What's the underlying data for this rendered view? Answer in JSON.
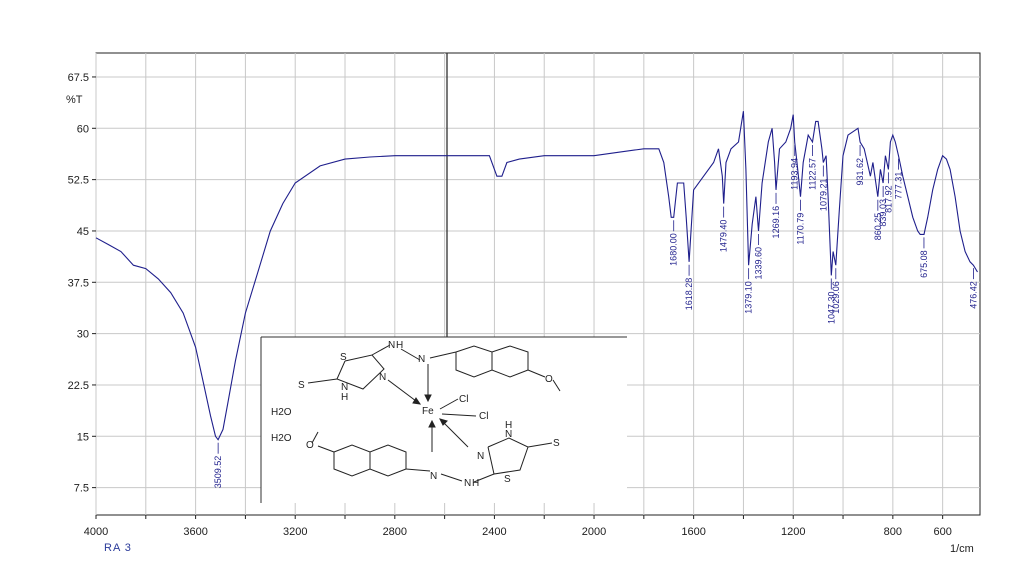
{
  "chart_data": {
    "type": "line",
    "title": "",
    "ylabel": "%T",
    "xlabel": "1/cm",
    "sample_label": "RA 3",
    "x_reversed": true,
    "xlim": [
      4000,
      450
    ],
    "ylim": [
      3.5,
      71
    ],
    "grid": true,
    "colors": {
      "trace": "#1f1f8c",
      "grid": "#c8c8c8",
      "axis": "#202020"
    },
    "x_ticks": [
      4000,
      3600,
      3200,
      2800,
      2400,
      2000,
      1600,
      1200,
      800,
      600
    ],
    "x_tick_labels": [
      "4000",
      "3600",
      "3200",
      "2800",
      "2400",
      "2000",
      "1600",
      "1200",
      "800",
      "600"
    ],
    "x_ticks_all": [
      4000,
      3800,
      3600,
      3400,
      3200,
      3000,
      2800,
      2600,
      2400,
      2200,
      2000,
      1800,
      1600,
      1400,
      1200,
      1000,
      800,
      600
    ],
    "x_tick_labels_all": [
      "4000",
      "3800",
      "3600",
      "3400",
      "3200",
      "3000",
      "2800",
      "2600",
      "2400",
      "2200",
      "2000",
      "1800",
      "1600",
      "1400",
      "1200",
      "1000",
      "800",
      "600"
    ],
    "y_ticks": [
      7.5,
      15,
      22.5,
      30,
      37.5,
      45,
      52.5,
      60,
      67.5
    ],
    "y_tick_labels": [
      "7.5",
      "15",
      "22.5",
      "30",
      "37.5",
      "45",
      "52.5",
      "60",
      "67.5"
    ],
    "series": [
      {
        "values": [
          [
            4000,
            44
          ],
          [
            3950,
            43
          ],
          [
            3900,
            42
          ],
          [
            3850,
            40
          ],
          [
            3800,
            39.5
          ],
          [
            3750,
            38
          ],
          [
            3700,
            36
          ],
          [
            3650,
            33
          ],
          [
            3600,
            28
          ],
          [
            3570,
            23
          ],
          [
            3540,
            18
          ],
          [
            3520,
            15
          ],
          [
            3509.52,
            14.5
          ],
          [
            3490,
            16
          ],
          [
            3470,
            20
          ],
          [
            3440,
            26
          ],
          [
            3400,
            33
          ],
          [
            3350,
            39
          ],
          [
            3300,
            45
          ],
          [
            3250,
            49
          ],
          [
            3200,
            52
          ],
          [
            3100,
            54.5
          ],
          [
            3000,
            55.5
          ],
          [
            2900,
            55.8
          ],
          [
            2800,
            56
          ],
          [
            2700,
            56
          ],
          [
            2600,
            56
          ],
          [
            2500,
            56
          ],
          [
            2420,
            56
          ],
          [
            2390,
            53
          ],
          [
            2370,
            53
          ],
          [
            2350,
            55
          ],
          [
            2300,
            55.5
          ],
          [
            2200,
            56
          ],
          [
            2100,
            56
          ],
          [
            2000,
            56
          ],
          [
            1900,
            56.5
          ],
          [
            1800,
            57
          ],
          [
            1740,
            57
          ],
          [
            1720,
            55
          ],
          [
            1700,
            50
          ],
          [
            1690,
            47
          ],
          [
            1680,
            47
          ],
          [
            1665,
            52
          ],
          [
            1640,
            52
          ],
          [
            1630,
            47
          ],
          [
            1618.28,
            40.5
          ],
          [
            1600,
            51
          ],
          [
            1560,
            53
          ],
          [
            1520,
            55
          ],
          [
            1500,
            57
          ],
          [
            1485,
            53
          ],
          [
            1479.4,
            49
          ],
          [
            1470,
            55
          ],
          [
            1450,
            57
          ],
          [
            1420,
            58
          ],
          [
            1400,
            62.5
          ],
          [
            1390,
            54
          ],
          [
            1379.1,
            40
          ],
          [
            1365,
            46
          ],
          [
            1350,
            50
          ],
          [
            1339.6,
            45
          ],
          [
            1325,
            52
          ],
          [
            1300,
            58
          ],
          [
            1285,
            60
          ],
          [
            1275,
            55
          ],
          [
            1269.16,
            51
          ],
          [
            1255,
            57
          ],
          [
            1230,
            58
          ],
          [
            1210,
            60
          ],
          [
            1200,
            62
          ],
          [
            1193.94,
            58
          ],
          [
            1185,
            55
          ],
          [
            1170.79,
            50
          ],
          [
            1160,
            55
          ],
          [
            1140,
            59
          ],
          [
            1122.57,
            58
          ],
          [
            1110,
            61
          ],
          [
            1100,
            61
          ],
          [
            1085,
            57
          ],
          [
            1079.21,
            55
          ],
          [
            1068,
            56
          ],
          [
            1060,
            50
          ],
          [
            1047.3,
            38.5
          ],
          [
            1040,
            42
          ],
          [
            1029.06,
            40
          ],
          [
            1015,
            48
          ],
          [
            1000,
            56
          ],
          [
            980,
            59
          ],
          [
            960,
            59.5
          ],
          [
            940,
            60
          ],
          [
            931.62,
            58
          ],
          [
            915,
            57
          ],
          [
            890,
            53
          ],
          [
            880,
            55
          ],
          [
            860.25,
            50
          ],
          [
            850,
            54
          ],
          [
            839.03,
            52
          ],
          [
            830,
            56
          ],
          [
            817.92,
            54
          ],
          [
            810,
            58
          ],
          [
            800,
            59
          ],
          [
            790,
            58
          ],
          [
            777.31,
            56
          ],
          [
            760,
            53
          ],
          [
            740,
            50
          ],
          [
            720,
            47
          ],
          [
            700,
            45
          ],
          [
            690,
            44.5
          ],
          [
            675.08,
            44.5
          ],
          [
            660,
            47
          ],
          [
            640,
            51
          ],
          [
            620,
            54
          ],
          [
            600,
            56
          ],
          [
            585,
            55.5
          ],
          [
            570,
            54
          ],
          [
            550,
            50
          ],
          [
            530,
            45
          ],
          [
            510,
            42
          ],
          [
            490,
            40.5
          ],
          [
            476.42,
            40
          ],
          [
            460,
            39
          ]
        ]
      }
    ],
    "annotations": [
      {
        "label": "3509.52",
        "x": 3509.52,
        "y": 14.5
      },
      {
        "label": "1680.00",
        "x": 1680,
        "y": 47
      },
      {
        "label": "1618.28",
        "x": 1618.28,
        "y": 40.5
      },
      {
        "label": "1479.40",
        "x": 1479.4,
        "y": 49
      },
      {
        "label": "1379.10",
        "x": 1379.1,
        "y": 40
      },
      {
        "label": "1339.60",
        "x": 1339.6,
        "y": 45
      },
      {
        "label": "1269.16",
        "x": 1269.16,
        "y": 51
      },
      {
        "label": "1193.94",
        "x": 1193.94,
        "y": 58
      },
      {
        "label": "1170.79",
        "x": 1170.79,
        "y": 50
      },
      {
        "label": "1122.57",
        "x": 1122.57,
        "y": 58
      },
      {
        "label": "1079.21",
        "x": 1079.21,
        "y": 55
      },
      {
        "label": "1047.30",
        "x": 1047.3,
        "y": 38.5
      },
      {
        "label": "1029.06",
        "x": 1029.06,
        "y": 40
      },
      {
        "label": "931.62",
        "x": 931.62,
        "y": 58
      },
      {
        "label": "860.25",
        "x": 860.25,
        "y": 50
      },
      {
        "label": "839.03",
        "x": 839.03,
        "y": 52
      },
      {
        "label": "817.92",
        "x": 817.92,
        "y": 54
      },
      {
        "label": "777.31",
        "x": 777.31,
        "y": 56
      },
      {
        "label": "675.08",
        "x": 675.08,
        "y": 44.5
      },
      {
        "label": "476.42",
        "x": 476.42,
        "y": 40
      }
    ]
  },
  "inset": {
    "atoms": {
      "s_ring_top": "S",
      "s_thione_top": "S",
      "n_top_1": "N",
      "n_top_2": "N",
      "n_top_3": "N",
      "nh_top": "N",
      "h_top": "H",
      "h_hydrazone_top": "H",
      "fe": "Fe",
      "cl_1": "Cl",
      "cl_2": "Cl",
      "s_ring_bottom": "S",
      "s_thione_bottom": "S",
      "n_bottom_1": "N",
      "n_bottom_2": "N",
      "n_bottom_3": "N",
      "nh_bottom": "N",
      "h_bottom": "H",
      "h_hydrazone_bottom": "H",
      "o_top": "O",
      "o_bottom": "O"
    },
    "water_1": "H2O",
    "water_2": "H2O"
  }
}
